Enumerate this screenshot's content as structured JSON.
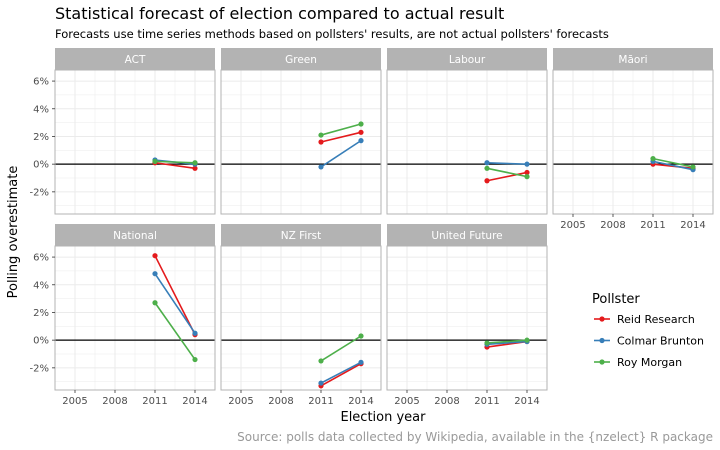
{
  "title": "Statistical forecast of election compared to actual result",
  "subtitle": "Forecasts use time series methods based on pollsters' results, are not actual pollsters' forecasts",
  "caption": "Source: polls data collected by Wikipedia, available in the {nzelect} R package",
  "colors": {
    "Reid Research": "#e41a1c",
    "Colmar Brunton": "#377eb8",
    "Roy Morgan": "#4daf4a",
    "strip": "#b3b3b3",
    "grid": "#ebebeb",
    "border": "#b3b3b3",
    "zero_line": "#000000"
  },
  "chart_data": {
    "type": "line",
    "facet_by": "party",
    "xlabel": "Election year",
    "ylabel": "Polling overestimate",
    "x_ticks": [
      2005,
      2008,
      2011,
      2014
    ],
    "y_ticks": [
      "-2%",
      "0%",
      "2%",
      "4%",
      "6%"
    ],
    "y_tick_values": [
      -2,
      0,
      2,
      4,
      6
    ],
    "xlim": [
      2003.5,
      2015.5
    ],
    "ylim": [
      -3.6,
      6.8
    ],
    "hline": 0,
    "legend": {
      "title": "Pollster",
      "position": "right",
      "entries": [
        "Reid Research",
        "Colmar Brunton",
        "Roy Morgan"
      ]
    },
    "panels": [
      {
        "party": "ACT",
        "series": [
          {
            "name": "Reid Research",
            "x": [
              2011,
              2014
            ],
            "y": [
              0.1,
              -0.3
            ]
          },
          {
            "name": "Colmar Brunton",
            "x": [
              2011,
              2014
            ],
            "y": [
              0.3,
              0.0
            ]
          },
          {
            "name": "Roy Morgan",
            "x": [
              2011,
              2014
            ],
            "y": [
              0.2,
              0.1
            ]
          }
        ]
      },
      {
        "party": "Green",
        "series": [
          {
            "name": "Reid Research",
            "x": [
              2011,
              2014
            ],
            "y": [
              1.6,
              2.3
            ]
          },
          {
            "name": "Colmar Brunton",
            "x": [
              2011,
              2014
            ],
            "y": [
              -0.2,
              1.7
            ]
          },
          {
            "name": "Roy Morgan",
            "x": [
              2011,
              2014
            ],
            "y": [
              2.1,
              2.9
            ]
          }
        ]
      },
      {
        "party": "Labour",
        "series": [
          {
            "name": "Reid Research",
            "x": [
              2011,
              2014
            ],
            "y": [
              -1.2,
              -0.6
            ]
          },
          {
            "name": "Colmar Brunton",
            "x": [
              2011,
              2014
            ],
            "y": [
              0.1,
              0.0
            ]
          },
          {
            "name": "Roy Morgan",
            "x": [
              2011,
              2014
            ],
            "y": [
              -0.3,
              -0.9
            ]
          }
        ]
      },
      {
        "party": "Māori",
        "series": [
          {
            "name": "Reid Research",
            "x": [
              2011,
              2014
            ],
            "y": [
              0.0,
              -0.3
            ]
          },
          {
            "name": "Colmar Brunton",
            "x": [
              2011,
              2014
            ],
            "y": [
              0.2,
              -0.4
            ]
          },
          {
            "name": "Roy Morgan",
            "x": [
              2011,
              2014
            ],
            "y": [
              0.4,
              -0.2
            ]
          }
        ]
      },
      {
        "party": "National",
        "series": [
          {
            "name": "Reid Research",
            "x": [
              2011,
              2014
            ],
            "y": [
              6.1,
              0.4
            ]
          },
          {
            "name": "Colmar Brunton",
            "x": [
              2011,
              2014
            ],
            "y": [
              4.8,
              0.5
            ]
          },
          {
            "name": "Roy Morgan",
            "x": [
              2011,
              2014
            ],
            "y": [
              2.7,
              -1.4
            ]
          }
        ]
      },
      {
        "party": "NZ First",
        "series": [
          {
            "name": "Reid Research",
            "x": [
              2011,
              2014
            ],
            "y": [
              -3.3,
              -1.7
            ]
          },
          {
            "name": "Colmar Brunton",
            "x": [
              2011,
              2014
            ],
            "y": [
              -3.1,
              -1.6
            ]
          },
          {
            "name": "Roy Morgan",
            "x": [
              2011,
              2014
            ],
            "y": [
              -1.5,
              0.3
            ]
          }
        ]
      },
      {
        "party": "United Future",
        "series": [
          {
            "name": "Reid Research",
            "x": [
              2011,
              2014
            ],
            "y": [
              -0.5,
              -0.1
            ]
          },
          {
            "name": "Colmar Brunton",
            "x": [
              2011,
              2014
            ],
            "y": [
              -0.3,
              -0.1
            ]
          },
          {
            "name": "Roy Morgan",
            "x": [
              2011,
              2014
            ],
            "y": [
              -0.2,
              0.0
            ]
          }
        ]
      }
    ]
  }
}
